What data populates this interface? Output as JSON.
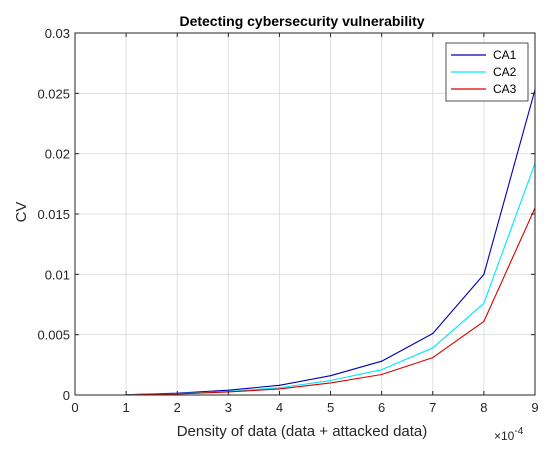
{
  "chart_data": {
    "type": "line",
    "title": "Detecting cybersecurity vulnerability",
    "xlabel": "Density of data (data + attacked data)",
    "ylabel": "CV",
    "x_multiplier_base": "×10",
    "x_multiplier_exponent": "-4",
    "xlim": [
      0,
      9
    ],
    "ylim": [
      0,
      0.03
    ],
    "x_ticks": [
      "0",
      "1",
      "2",
      "3",
      "4",
      "5",
      "6",
      "7",
      "8",
      "9"
    ],
    "y_ticks": [
      "0",
      "0.005",
      "0.01",
      "0.015",
      "0.02",
      "0.025",
      "0.03"
    ],
    "x": [
      1,
      2,
      3,
      4,
      5,
      6,
      7,
      8,
      9
    ],
    "grid": true,
    "legend_position": "top-right",
    "series": [
      {
        "name": "CA1",
        "color": "#0000b4",
        "values": [
          2e-05,
          0.00015,
          0.0004,
          0.0008,
          0.0016,
          0.0028,
          0.0051,
          0.01,
          0.0253
        ]
      },
      {
        "name": "CA2",
        "color": "#00e5ff",
        "values": [
          1e-05,
          0.00011,
          0.0003,
          0.0006,
          0.0012,
          0.0021,
          0.0039,
          0.0076,
          0.0192
        ]
      },
      {
        "name": "CA3",
        "color": "#d70000",
        "values": [
          1e-05,
          9e-05,
          0.00025,
          0.0005,
          0.001,
          0.0017,
          0.0031,
          0.0061,
          0.0155
        ]
      }
    ]
  }
}
